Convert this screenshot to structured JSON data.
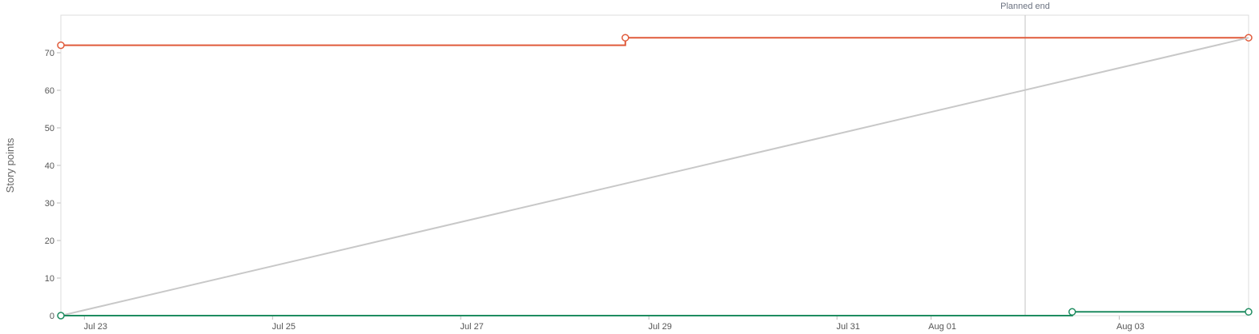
{
  "chart_data": {
    "type": "line",
    "title": "",
    "xlabel": "",
    "ylabel": "Story points",
    "x_range": [
      "2022-07-22 18:00",
      "2022-08-04 09:00"
    ],
    "ylim": [
      0,
      80
    ],
    "y_ticks": [
      0,
      10,
      20,
      30,
      40,
      50,
      60,
      70
    ],
    "x_ticks": [
      {
        "date": "2022-07-23",
        "label": "Jul 23"
      },
      {
        "date": "2022-07-25",
        "label": "Jul 25"
      },
      {
        "date": "2022-07-27",
        "label": "Jul 27"
      },
      {
        "date": "2022-07-29",
        "label": "Jul 29"
      },
      {
        "date": "2022-07-31",
        "label": "Jul 31"
      },
      {
        "date": "2022-08-01",
        "label": "Aug 01"
      },
      {
        "date": "2022-08-03",
        "label": "Aug 03"
      }
    ],
    "grid": false,
    "marker": {
      "label": "Planned end",
      "date": "2022-08-02 00:00"
    },
    "series": [
      {
        "color": "#e05a3a",
        "step": true,
        "points": [
          {
            "x": "2022-07-22 18:00",
            "y": 72,
            "marker": true
          },
          {
            "x": "2022-07-28 18:00",
            "y": 74,
            "marker": true
          },
          {
            "x": "2022-08-04 09:00",
            "y": 74,
            "marker": true
          }
        ]
      },
      {
        "color": "#c8c8c8",
        "step": false,
        "points": [
          {
            "x": "2022-07-22 18:00",
            "y": 0,
            "marker": false
          },
          {
            "x": "2022-08-04 09:00",
            "y": 74,
            "marker": false
          }
        ]
      },
      {
        "color": "#1e8c60",
        "step": true,
        "points": [
          {
            "x": "2022-07-22 18:00",
            "y": 0,
            "marker": true
          },
          {
            "x": "2022-08-02 12:00",
            "y": 1,
            "marker": true
          },
          {
            "x": "2022-08-04 09:00",
            "y": 1,
            "marker": true
          }
        ]
      }
    ]
  }
}
